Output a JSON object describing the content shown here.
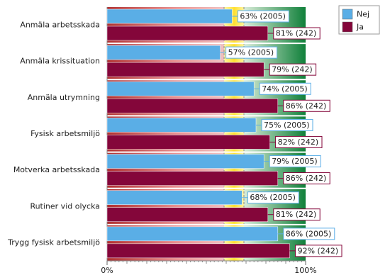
{
  "chart_data": {
    "type": "hbar",
    "categories": [
      "Anmäla arbetsskada",
      "Anmäla krissituation",
      "Anmäla utrymning",
      "Fysisk arbetsmiljö",
      "Motverka arbetsskada",
      "Rutiner vid olycka",
      "Trygg fysisk arbetsmiljö"
    ],
    "series": [
      {
        "name": "Nej",
        "color": "#5aaee6",
        "values": [
          63,
          57,
          74,
          75,
          79,
          68,
          86
        ],
        "value_labels": [
          "63% (2005)",
          "57% (2005)",
          "74% (2005)",
          "75% (2005)",
          "79% (2005)",
          "68% (2005)",
          "86% (2005)"
        ]
      },
      {
        "name": "Ja",
        "color": "#84063a",
        "values": [
          81,
          79,
          86,
          82,
          86,
          81,
          92
        ],
        "value_labels": [
          "81% (242)",
          "79% (242)",
          "86% (242)",
          "82% (242)",
          "86% (242)",
          "81% (242)",
          "92% (242)"
        ]
      }
    ],
    "xlim": [
      0,
      100
    ],
    "xticks": [
      {
        "value": 0,
        "label": "0%"
      },
      {
        "value": 100,
        "label": "100%"
      }
    ],
    "legend": "top-right"
  }
}
